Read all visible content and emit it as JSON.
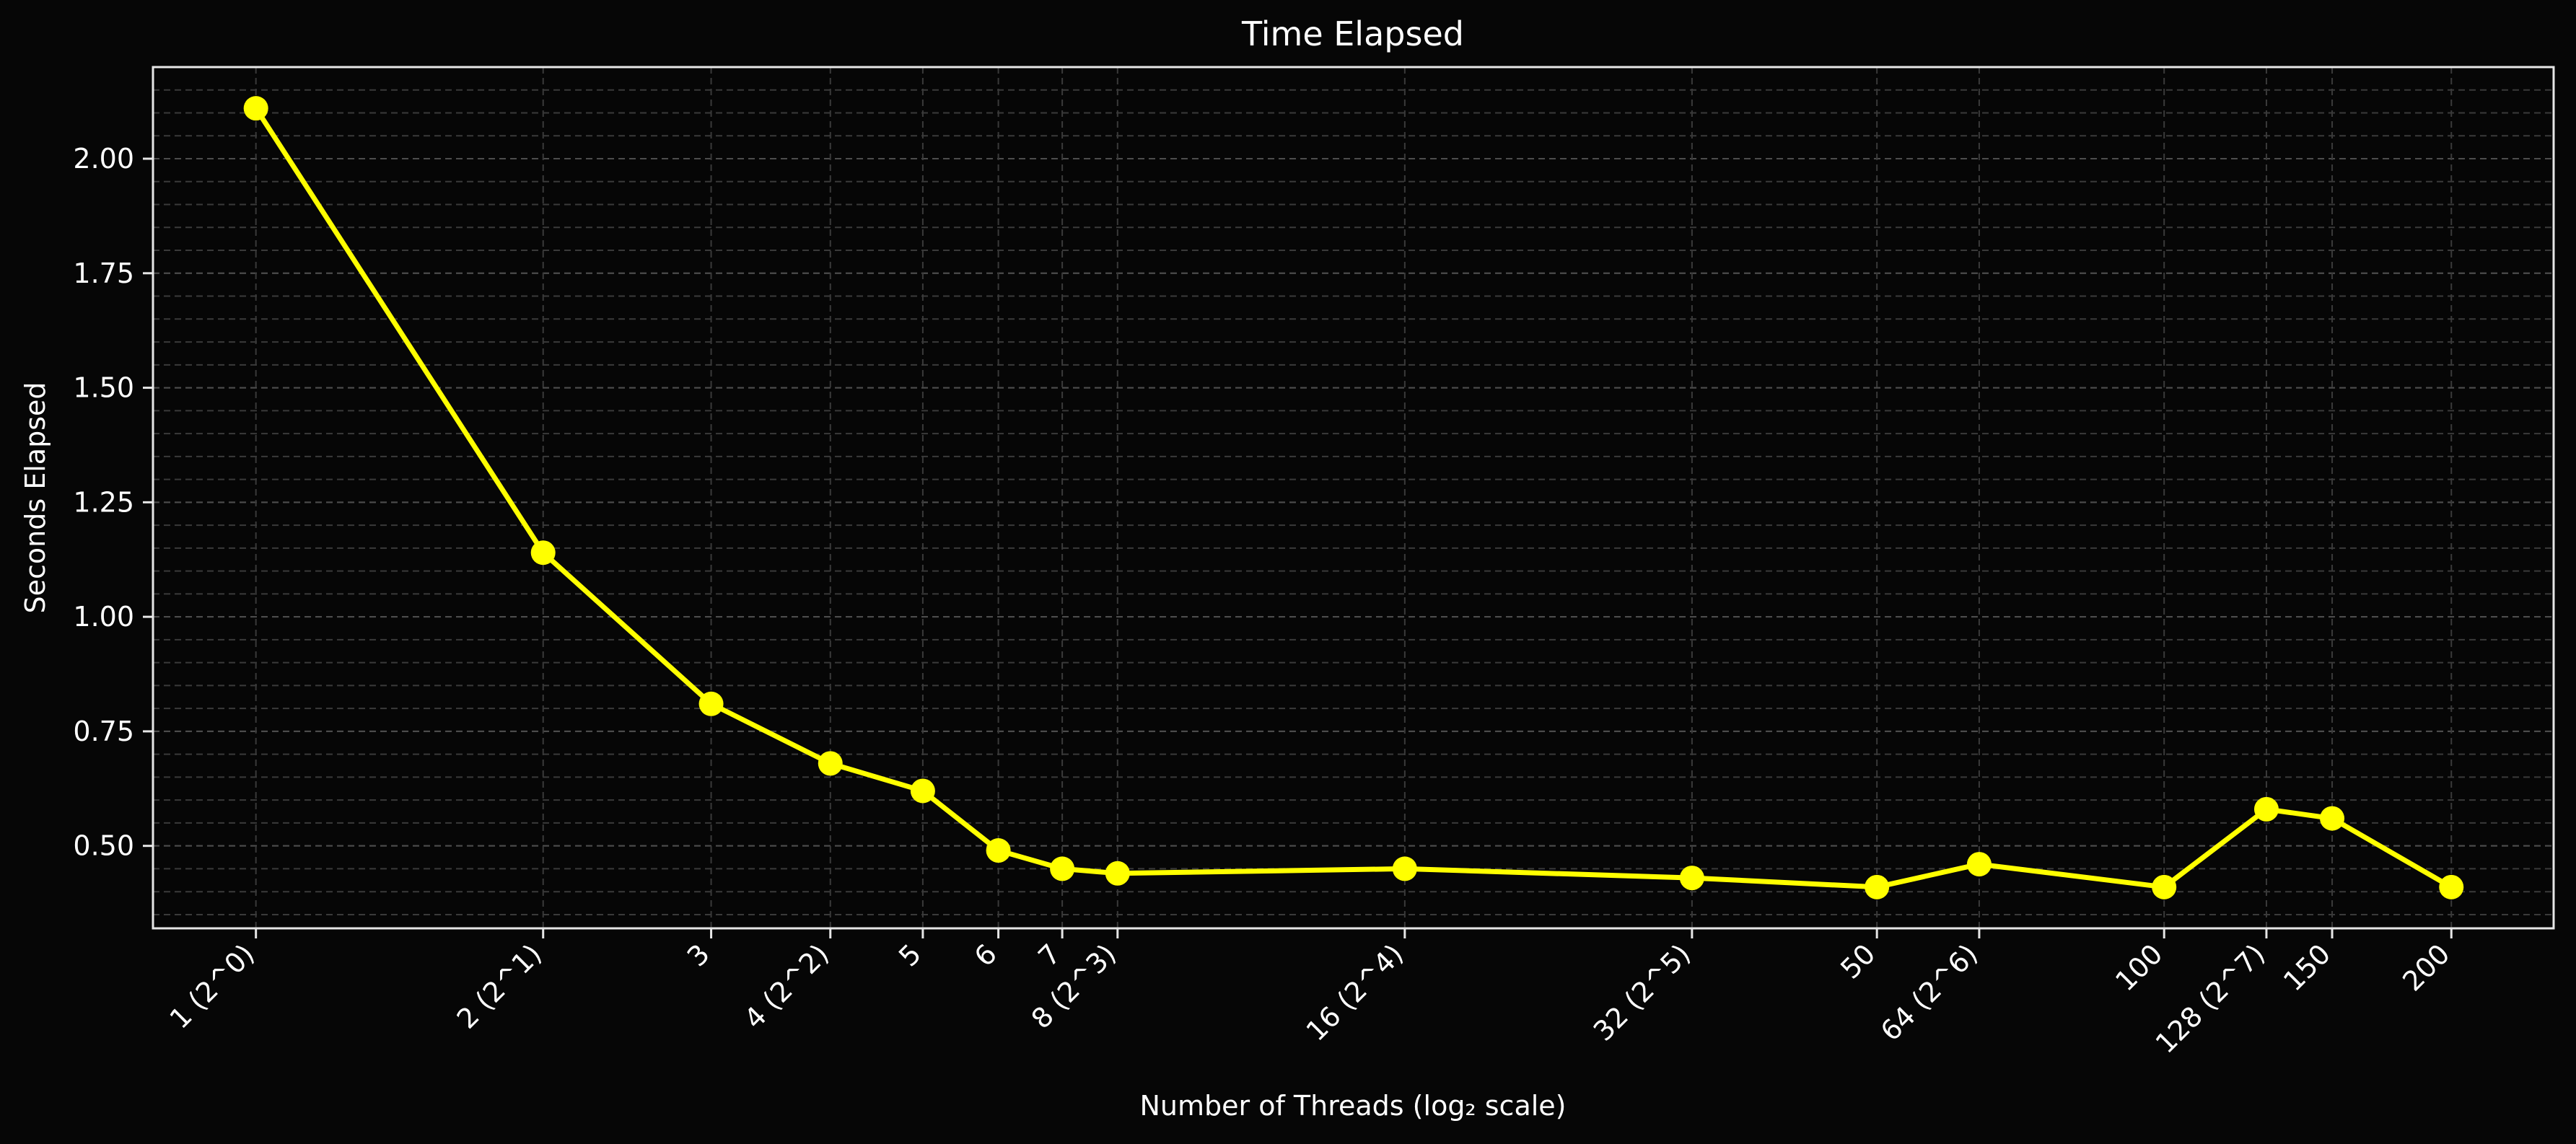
{
  "chart_data": {
    "type": "line",
    "title": "Time Elapsed",
    "xlabel": "Number of Threads (log₂ scale)",
    "ylabel": "Seconds Elapsed",
    "x_scale": "log2",
    "xlim": [
      0.78,
      256
    ],
    "ylim": [
      0.32,
      2.2
    ],
    "grid": true,
    "x": [
      1,
      2,
      3,
      4,
      5,
      6,
      7,
      8,
      16,
      32,
      50,
      64,
      100,
      128,
      150,
      200
    ],
    "x_tick_labels": [
      "1 (2^0)",
      "2 (2^1)",
      "3",
      "4 (2^2)",
      "5",
      "6",
      "7",
      "8 (2^3)",
      "16 (2^4)",
      "32 (2^5)",
      "50",
      "64 (2^6)",
      "100",
      "128 (2^7)",
      "150",
      "200"
    ],
    "y_ticks": [
      0.5,
      0.75,
      1.0,
      1.25,
      1.5,
      1.75,
      2.0
    ],
    "y_tick_labels": [
      "0.50",
      "0.75",
      "1.00",
      "1.25",
      "1.50",
      "1.75",
      "2.00"
    ],
    "series": [
      {
        "values": [
          2.11,
          1.14,
          0.81,
          0.68,
          0.62,
          0.49,
          0.45,
          0.44,
          0.45,
          0.43,
          0.41,
          0.46,
          0.41,
          0.58,
          0.56,
          0.41
        ],
        "color": "#ffff00"
      }
    ]
  }
}
